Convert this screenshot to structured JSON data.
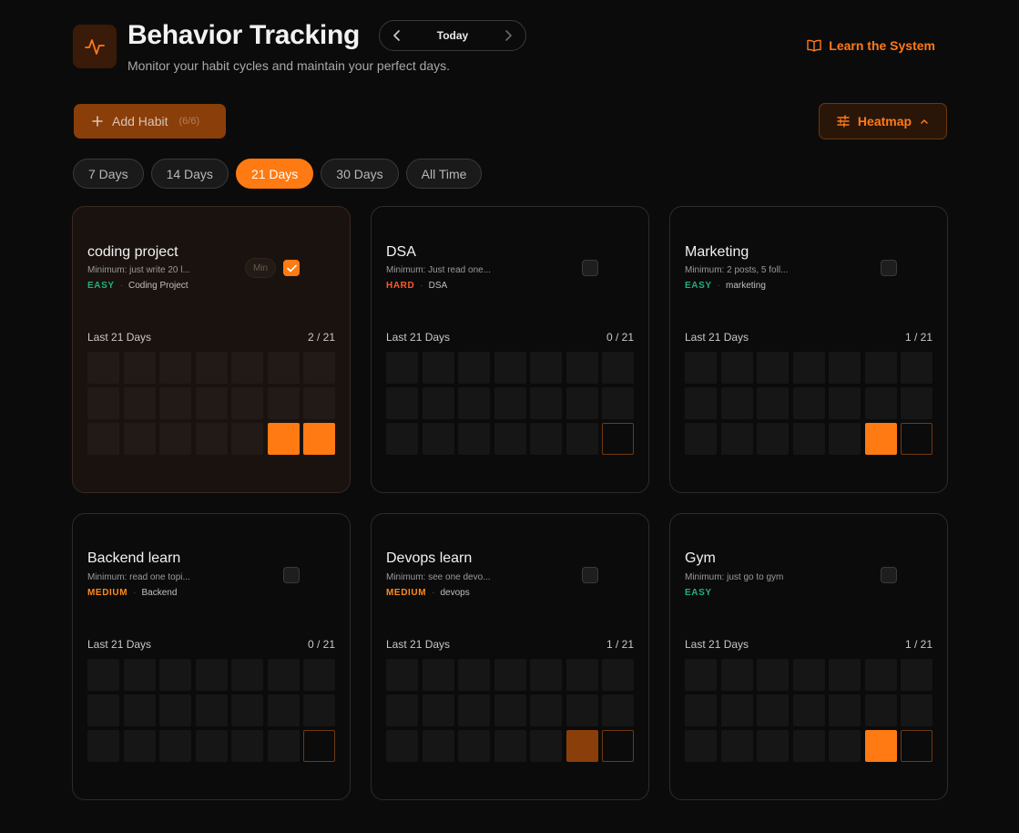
{
  "header": {
    "title": "Behavior Tracking",
    "subtitle": "Monitor your habit cycles and maintain your perfect days.",
    "date_label": "Today",
    "learn_label": "Learn the System"
  },
  "toolbar": {
    "add_habit_label": "Add Habit",
    "add_habit_count": "(6/6)",
    "heatmap_label": "Heatmap"
  },
  "ranges": [
    {
      "label": "7 Days",
      "active": false
    },
    {
      "label": "14 Days",
      "active": false
    },
    {
      "label": "21 Days",
      "active": true
    },
    {
      "label": "30 Days",
      "active": false
    },
    {
      "label": "All Time",
      "active": false
    }
  ],
  "colors": {
    "accent": "#ff7a12",
    "easy": "#22b07a",
    "hard": "#ff5a28",
    "medium": "#ff8a1a"
  },
  "habits": [
    {
      "name": "coding project",
      "minimum": "Minimum: just write 20 l...",
      "difficulty": "EASY",
      "difficulty_class": "easy",
      "tag": "Coding Project",
      "checked": true,
      "min_label": "Min",
      "highlight": true,
      "last_label": "Last 21 Days",
      "count": "2 / 21",
      "cells": [
        "e",
        "e",
        "e",
        "e",
        "e",
        "e",
        "e",
        "e",
        "e",
        "e",
        "e",
        "e",
        "e",
        "e",
        "e",
        "e",
        "e",
        "e",
        "e",
        "done",
        "done"
      ]
    },
    {
      "name": "DSA",
      "minimum": "Minimum: Just read one...",
      "difficulty": "HARD",
      "difficulty_class": "hard",
      "tag": "DSA",
      "checked": false,
      "highlight": false,
      "last_label": "Last 21 Days",
      "count": "0 / 21",
      "cells": [
        "e",
        "e",
        "e",
        "e",
        "e",
        "e",
        "e",
        "e",
        "e",
        "e",
        "e",
        "e",
        "e",
        "e",
        "e",
        "e",
        "e",
        "e",
        "e",
        "e",
        "today"
      ]
    },
    {
      "name": "Marketing",
      "minimum": "Minimum: 2 posts, 5 foll...",
      "difficulty": "EASY",
      "difficulty_class": "easy",
      "tag": "marketing",
      "checked": false,
      "highlight": false,
      "last_label": "Last 21 Days",
      "count": "1 / 21",
      "cells": [
        "e",
        "e",
        "e",
        "e",
        "e",
        "e",
        "e",
        "e",
        "e",
        "e",
        "e",
        "e",
        "e",
        "e",
        "e",
        "e",
        "e",
        "e",
        "e",
        "done",
        "today"
      ]
    },
    {
      "name": "Backend learn",
      "minimum": "Minimum: read one topi...",
      "difficulty": "MEDIUM",
      "difficulty_class": "medium",
      "tag": "Backend",
      "checked": false,
      "highlight": false,
      "last_label": "Last 21 Days",
      "count": "0 / 21",
      "cells": [
        "e",
        "e",
        "e",
        "e",
        "e",
        "e",
        "e",
        "e",
        "e",
        "e",
        "e",
        "e",
        "e",
        "e",
        "e",
        "e",
        "e",
        "e",
        "e",
        "e",
        "today"
      ]
    },
    {
      "name": "Devops learn",
      "minimum": "Minimum: see one devo...",
      "difficulty": "MEDIUM",
      "difficulty_class": "medium",
      "tag": "devops",
      "checked": false,
      "highlight": false,
      "last_label": "Last 21 Days",
      "count": "1 / 21",
      "cells": [
        "e",
        "e",
        "e",
        "e",
        "e",
        "e",
        "e",
        "e",
        "e",
        "e",
        "e",
        "e",
        "e",
        "e",
        "e",
        "e",
        "e",
        "e",
        "e",
        "done-dark",
        "today"
      ]
    },
    {
      "name": "Gym",
      "minimum": "Minimum: just go to gym",
      "difficulty": "EASY",
      "difficulty_class": "easy",
      "tag": "",
      "checked": false,
      "highlight": false,
      "last_label": "Last 21 Days",
      "count": "1 / 21",
      "cells": [
        "e",
        "e",
        "e",
        "e",
        "e",
        "e",
        "e",
        "e",
        "e",
        "e",
        "e",
        "e",
        "e",
        "e",
        "e",
        "e",
        "e",
        "e",
        "e",
        "done",
        "today"
      ]
    }
  ]
}
